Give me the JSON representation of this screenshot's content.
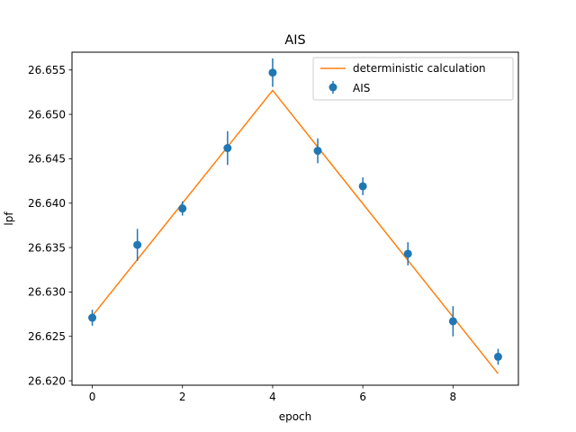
{
  "chart_data": {
    "type": "line",
    "title": "AIS",
    "xlabel": "epoch",
    "ylabel": "lpf",
    "xlim": [
      -0.45,
      9.45
    ],
    "ylim": [
      26.6195,
      26.657
    ],
    "xticks": [
      0,
      2,
      4,
      6,
      8
    ],
    "yticks": [
      26.62,
      26.625,
      26.63,
      26.635,
      26.64,
      26.645,
      26.65,
      26.655
    ],
    "ytick_labels": [
      "26.620",
      "26.625",
      "26.630",
      "26.635",
      "26.640",
      "26.645",
      "26.650",
      "26.655"
    ],
    "grid": false,
    "legend_position": "top-right",
    "series": [
      {
        "name": "deterministic calculation",
        "type": "line",
        "color": "#ff7f0e",
        "x": [
          0,
          4,
          9
        ],
        "y": [
          26.6273,
          26.6527,
          26.6208
        ]
      },
      {
        "name": "AIS",
        "type": "errorbar",
        "color": "#1f77b4",
        "x": [
          0,
          1,
          2,
          3,
          4,
          5,
          6,
          7,
          8,
          9
        ],
        "y": [
          26.6271,
          26.6353,
          26.6394,
          26.6462,
          26.6547,
          26.6459,
          26.6419,
          26.6343,
          26.6267,
          26.6227
        ],
        "yerr": [
          0.0009,
          0.0018,
          0.0008,
          0.0019,
          0.0016,
          0.0014,
          0.001,
          0.0013,
          0.0017,
          0.0009
        ]
      }
    ]
  }
}
